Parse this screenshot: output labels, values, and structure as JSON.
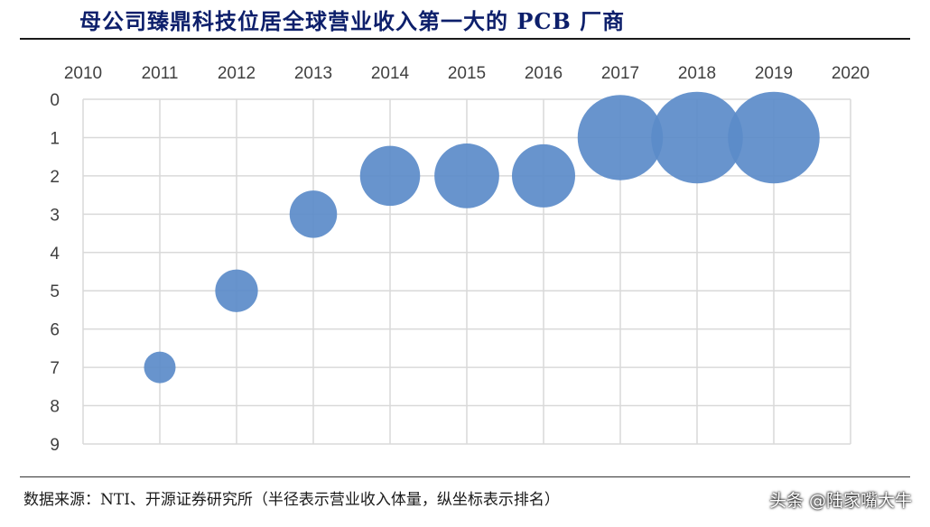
{
  "title": "母公司臻鼎科技位居全球营业收入第一大的 PCB 厂商",
  "source": "数据来源：NTI、开源证券研究所（半径表示营业收入体量，纵坐标表示排名）",
  "watermark": "头条 @陆家嘴大牛",
  "colors": {
    "bubble": "#5b8bc9",
    "title": "#0d1f6b",
    "grid": "#d9d9d9"
  },
  "chart_data": {
    "type": "bubble",
    "title": "",
    "xlabel": "",
    "ylabel": "",
    "xlim": [
      2010,
      2020
    ],
    "ylim": [
      0,
      9
    ],
    "y_inverted": true,
    "x_axis_position": "top",
    "grid": true,
    "legend": "none",
    "x_ticks": [
      "2010",
      "2011",
      "2012",
      "2013",
      "2014",
      "2015",
      "2016",
      "2017",
      "2018",
      "2019",
      "2020"
    ],
    "y_ticks": [
      "0",
      "1",
      "2",
      "3",
      "4",
      "5",
      "6",
      "7",
      "8",
      "9"
    ],
    "series": [
      {
        "x": [
          2011,
          2012,
          2013,
          2014,
          2015,
          2016,
          2017,
          2018,
          2019
        ],
        "y": [
          7,
          5,
          3,
          2,
          2,
          2,
          1,
          1,
          1
        ],
        "size": [
          1.0,
          1.35,
          1.5,
          1.9,
          2.05,
          2.0,
          2.7,
          2.9,
          2.9
        ]
      }
    ]
  }
}
